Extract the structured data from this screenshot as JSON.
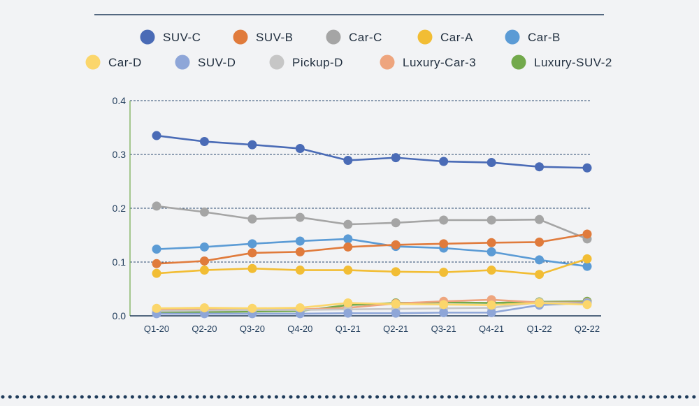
{
  "chart_data": {
    "type": "line",
    "title": "",
    "xlabel": "",
    "ylabel": "",
    "ylim": [
      0,
      0.4
    ],
    "yticks": [
      "0.0",
      "0.1",
      "0.2",
      "0.3",
      "0.4"
    ],
    "grid": "horizontal-dashed",
    "legend_position": "top",
    "categories": [
      "Q1-20",
      "Q2-20",
      "Q3-20",
      "Q4-20",
      "Q1-21",
      "Q2-21",
      "Q3-21",
      "Q4-21",
      "Q1-22",
      "Q2-22"
    ],
    "series": [
      {
        "name": "SUV-C",
        "color": "#4a6bb6",
        "values": [
          0.335,
          0.324,
          0.318,
          0.311,
          0.289,
          0.294,
          0.287,
          0.285,
          0.277,
          0.275
        ]
      },
      {
        "name": "SUV-B",
        "color": "#e07b3c",
        "values": [
          0.097,
          0.102,
          0.117,
          0.119,
          0.128,
          0.132,
          0.134,
          0.136,
          0.137,
          0.152
        ]
      },
      {
        "name": "Car-C",
        "color": "#a5a5a5",
        "values": [
          0.204,
          0.193,
          0.18,
          0.183,
          0.17,
          0.173,
          0.178,
          0.178,
          0.179,
          0.143
        ]
      },
      {
        "name": "Car-A",
        "color": "#f2bd34",
        "values": [
          0.079,
          0.085,
          0.088,
          0.085,
          0.085,
          0.082,
          0.081,
          0.085,
          0.077,
          0.106
        ]
      },
      {
        "name": "Car-B",
        "color": "#5b9bd5",
        "values": [
          0.124,
          0.128,
          0.134,
          0.139,
          0.143,
          0.129,
          0.126,
          0.119,
          0.104,
          0.092
        ]
      },
      {
        "name": "Car-D",
        "color": "#fbd66b",
        "values": [
          0.014,
          0.015,
          0.014,
          0.015,
          0.024,
          0.022,
          0.021,
          0.02,
          0.024,
          0.021
        ]
      },
      {
        "name": "SUV-D",
        "color": "#8ea6d8",
        "values": [
          0.004,
          0.004,
          0.004,
          0.004,
          0.005,
          0.005,
          0.006,
          0.006,
          0.02,
          0.024
        ]
      },
      {
        "name": "Pickup-D",
        "color": "#c6c6c6",
        "values": [
          0.009,
          0.01,
          0.011,
          0.011,
          0.012,
          0.013,
          0.014,
          0.015,
          0.025,
          0.023
        ]
      },
      {
        "name": "Luxury-Car-3",
        "color": "#eea57e",
        "values": [
          0.011,
          0.012,
          0.012,
          0.012,
          0.015,
          0.023,
          0.027,
          0.03,
          0.025,
          0.025
        ]
      },
      {
        "name": "Luxury-SUV-2",
        "color": "#72a94b",
        "values": [
          0.006,
          0.007,
          0.008,
          0.009,
          0.02,
          0.024,
          0.025,
          0.024,
          0.026,
          0.027
        ]
      }
    ]
  }
}
